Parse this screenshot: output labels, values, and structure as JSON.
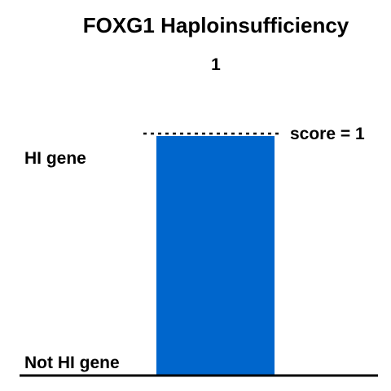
{
  "chart_data": {
    "type": "bar",
    "title": "FOXG1 Haploinsufficiency",
    "subtitle": "1",
    "categories": [
      "FOXG1"
    ],
    "values": [
      1
    ],
    "ylim": [
      0,
      1
    ],
    "reference_line": {
      "value": 1,
      "label": "score = 1",
      "style": "dotted"
    },
    "y_annotations": {
      "top": "HI gene",
      "bottom": "Not HI gene"
    },
    "colors": {
      "bar": "#0066cc",
      "axis": "#000000",
      "reference": "#000000"
    }
  }
}
